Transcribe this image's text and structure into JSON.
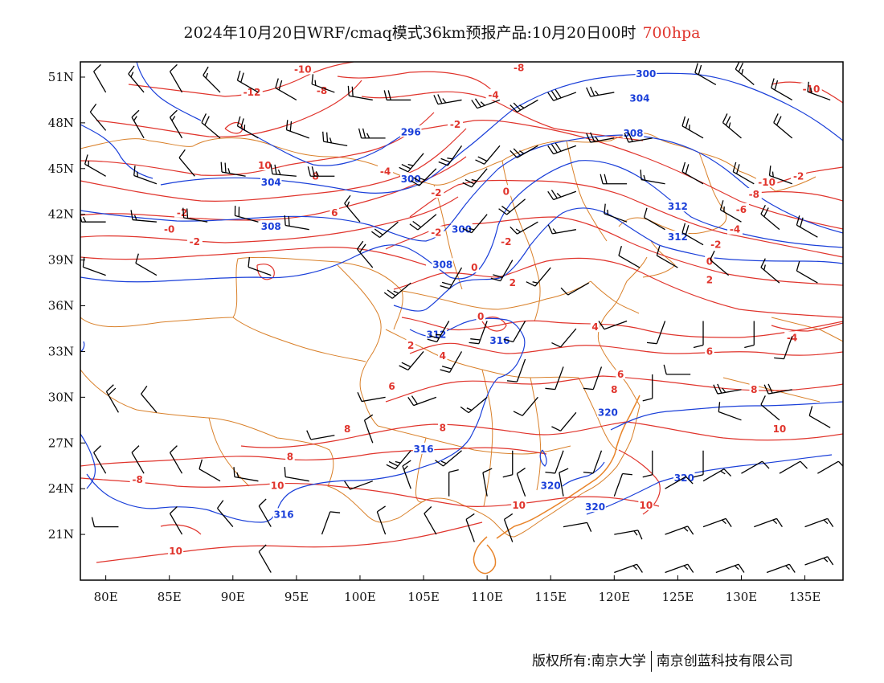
{
  "title": {
    "main": "2024年10月20日WRF/cmaq模式36km预报产品:10月20日00时",
    "level": "700hpa"
  },
  "map": {
    "lon_range": [
      78,
      138
    ],
    "lat_range": [
      18,
      52
    ],
    "x_ticks": [
      "80E",
      "85E",
      "90E",
      "95E",
      "100E",
      "105E",
      "110E",
      "115E",
      "120E",
      "125E",
      "130E",
      "135E"
    ],
    "y_ticks": [
      "51N",
      "48N",
      "45N",
      "42N",
      "39N",
      "36N",
      "33N",
      "30N",
      "27N",
      "24N",
      "21N"
    ],
    "colors": {
      "temperature": "#e0342c",
      "height": "#1a3fd9",
      "border": "#d9802a",
      "wind": "#000000"
    }
  },
  "temperature_labels": [
    {
      "text": "-10",
      "lon": 95.5,
      "lat": 51.5
    },
    {
      "text": "-8",
      "lon": 97,
      "lat": 50.1
    },
    {
      "text": "-12",
      "lon": 91.5,
      "lat": 50.0
    },
    {
      "text": "-8",
      "lon": 112.5,
      "lat": 51.6
    },
    {
      "text": "-4",
      "lon": 110.5,
      "lat": 49.8
    },
    {
      "text": "-2",
      "lon": 107.5,
      "lat": 47.9
    },
    {
      "text": "10",
      "lon": 92.5,
      "lat": 45.2
    },
    {
      "text": "8",
      "lon": 96.5,
      "lat": 44.5
    },
    {
      "text": "-4",
      "lon": 102,
      "lat": 44.8
    },
    {
      "text": "-2",
      "lon": 106,
      "lat": 43.4
    },
    {
      "text": "6",
      "lon": 98,
      "lat": 42.1
    },
    {
      "text": "-2",
      "lon": 86,
      "lat": 42.1
    },
    {
      "text": "-0",
      "lon": 85,
      "lat": 41.0
    },
    {
      "text": "-2",
      "lon": 87,
      "lat": 40.2
    },
    {
      "text": "-2",
      "lon": 106,
      "lat": 40.8
    },
    {
      "text": "-2",
      "lon": 111.5,
      "lat": 40.2
    },
    {
      "text": "0",
      "lon": 111.5,
      "lat": 43.5
    },
    {
      "text": "0",
      "lon": 109,
      "lat": 38.5
    },
    {
      "text": "2",
      "lon": 112,
      "lat": 37.5
    },
    {
      "text": "0",
      "lon": 109.5,
      "lat": 35.3
    },
    {
      "text": "4",
      "lon": 118.5,
      "lat": 34.6
    },
    {
      "text": "2",
      "lon": 104,
      "lat": 33.4
    },
    {
      "text": "4",
      "lon": 106.5,
      "lat": 32.7
    },
    {
      "text": "6",
      "lon": 102.5,
      "lat": 30.7
    },
    {
      "text": "6",
      "lon": 120.5,
      "lat": 31.5
    },
    {
      "text": "8",
      "lon": 120,
      "lat": 30.5
    },
    {
      "text": "6",
      "lon": 127.5,
      "lat": 33.0
    },
    {
      "text": "8",
      "lon": 131,
      "lat": 30.5
    },
    {
      "text": "8",
      "lon": 106.5,
      "lat": 28.0
    },
    {
      "text": "8",
      "lon": 99,
      "lat": 27.9
    },
    {
      "text": "8",
      "lon": 94.5,
      "lat": 26.1
    },
    {
      "text": "-8",
      "lon": 82.5,
      "lat": 24.6
    },
    {
      "text": "10",
      "lon": 93.5,
      "lat": 24.2
    },
    {
      "text": "10",
      "lon": 112.5,
      "lat": 22.9
    },
    {
      "text": "10",
      "lon": 122.5,
      "lat": 22.9
    },
    {
      "text": "10",
      "lon": 133,
      "lat": 27.9
    },
    {
      "text": "10",
      "lon": 85.5,
      "lat": 19.9
    },
    {
      "text": "-10",
      "lon": 132,
      "lat": 44.1
    },
    {
      "text": "-8",
      "lon": 131,
      "lat": 43.3
    },
    {
      "text": "-6",
      "lon": 130,
      "lat": 42.3
    },
    {
      "text": "-4",
      "lon": 129.5,
      "lat": 41.0
    },
    {
      "text": "-2",
      "lon": 128,
      "lat": 40.0
    },
    {
      "text": "0",
      "lon": 127.5,
      "lat": 38.9
    },
    {
      "text": "2",
      "lon": 127.5,
      "lat": 37.7
    },
    {
      "text": "-4",
      "lon": 134,
      "lat": 33.9
    },
    {
      "text": "-2",
      "lon": 134.5,
      "lat": 44.5
    },
    {
      "text": "-10",
      "lon": 135.5,
      "lat": 50.2
    }
  ],
  "height_labels": [
    {
      "text": "300",
      "lon": 122.5,
      "lat": 51.2
    },
    {
      "text": "304",
      "lon": 122,
      "lat": 49.6
    },
    {
      "text": "308",
      "lon": 121.5,
      "lat": 47.3
    },
    {
      "text": "296",
      "lon": 104,
      "lat": 47.4
    },
    {
      "text": "304",
      "lon": 93,
      "lat": 44.1
    },
    {
      "text": "300",
      "lon": 104,
      "lat": 44.3
    },
    {
      "text": "300",
      "lon": 108,
      "lat": 41.0
    },
    {
      "text": "308",
      "lon": 93,
      "lat": 41.2
    },
    {
      "text": "308",
      "lon": 106.5,
      "lat": 38.7
    },
    {
      "text": "312",
      "lon": 125,
      "lat": 42.5
    },
    {
      "text": "312",
      "lon": 125,
      "lat": 40.5
    },
    {
      "text": "312",
      "lon": 106,
      "lat": 34.1
    },
    {
      "text": "316",
      "lon": 111,
      "lat": 33.7
    },
    {
      "text": "320",
      "lon": 119.5,
      "lat": 29.0
    },
    {
      "text": "316",
      "lon": 105,
      "lat": 26.6
    },
    {
      "text": "320",
      "lon": 115,
      "lat": 24.2
    },
    {
      "text": "320",
      "lon": 118.5,
      "lat": 22.8
    },
    {
      "text": "320",
      "lon": 125.5,
      "lat": 24.7
    },
    {
      "text": "316",
      "lon": 94,
      "lat": 22.3
    }
  ],
  "wind_barbs": [
    {
      "lon": 80,
      "lat": 50,
      "dir": 330,
      "speed": 10
    },
    {
      "lon": 83,
      "lat": 50,
      "dir": 320,
      "speed": 15
    },
    {
      "lon": 86,
      "lat": 50,
      "dir": 330,
      "speed": 10
    },
    {
      "lon": 89,
      "lat": 50,
      "dir": 315,
      "speed": 15
    },
    {
      "lon": 92,
      "lat": 50,
      "dir": 300,
      "speed": 20
    },
    {
      "lon": 95,
      "lat": 49.5,
      "dir": 300,
      "speed": 20
    },
    {
      "lon": 98,
      "lat": 50,
      "dir": 290,
      "speed": 15
    },
    {
      "lon": 101,
      "lat": 49.5,
      "dir": 280,
      "speed": 20
    },
    {
      "lon": 104,
      "lat": 49.5,
      "dir": 270,
      "speed": 20
    },
    {
      "lon": 108,
      "lat": 49.5,
      "dir": 260,
      "speed": 25
    },
    {
      "lon": 111,
      "lat": 49.5,
      "dir": 250,
      "speed": 25
    },
    {
      "lon": 114,
      "lat": 49.5,
      "dir": 240,
      "speed": 25
    },
    {
      "lon": 117,
      "lat": 50,
      "dir": 250,
      "speed": 30
    },
    {
      "lon": 120,
      "lat": 50,
      "dir": 260,
      "speed": 25
    },
    {
      "lon": 128,
      "lat": 50.5,
      "dir": 300,
      "speed": 20
    },
    {
      "lon": 131,
      "lat": 50.5,
      "dir": 310,
      "speed": 25
    },
    {
      "lon": 134,
      "lat": 49.5,
      "dir": 300,
      "speed": 20
    },
    {
      "lon": 137,
      "lat": 49.5,
      "dir": 290,
      "speed": 15
    },
    {
      "lon": 80,
      "lat": 47.5,
      "dir": 320,
      "speed": 10
    },
    {
      "lon": 83,
      "lat": 47,
      "dir": 330,
      "speed": 15
    },
    {
      "lon": 86,
      "lat": 47,
      "dir": 330,
      "speed": 15
    },
    {
      "lon": 89,
      "lat": 47,
      "dir": 310,
      "speed": 20
    },
    {
      "lon": 92,
      "lat": 47,
      "dir": 300,
      "speed": 25
    },
    {
      "lon": 96,
      "lat": 47,
      "dir": 290,
      "speed": 20
    },
    {
      "lon": 99,
      "lat": 46.5,
      "dir": 280,
      "speed": 25
    },
    {
      "lon": 102,
      "lat": 47,
      "dir": 270,
      "speed": 25
    },
    {
      "lon": 105,
      "lat": 46,
      "dir": 220,
      "speed": 25
    },
    {
      "lon": 108,
      "lat": 46.5,
      "dir": 215,
      "speed": 25
    },
    {
      "lon": 111,
      "lat": 46.5,
      "dir": 220,
      "speed": 20
    },
    {
      "lon": 114,
      "lat": 46.5,
      "dir": 240,
      "speed": 25
    },
    {
      "lon": 117,
      "lat": 46.5,
      "dir": 250,
      "speed": 30
    },
    {
      "lon": 120,
      "lat": 47,
      "dir": 260,
      "speed": 25
    },
    {
      "lon": 123,
      "lat": 47,
      "dir": 260,
      "speed": 20
    },
    {
      "lon": 127,
      "lat": 47,
      "dir": 300,
      "speed": 25
    },
    {
      "lon": 130,
      "lat": 47,
      "dir": 310,
      "speed": 25
    },
    {
      "lon": 134,
      "lat": 47,
      "dir": 310,
      "speed": 20
    },
    {
      "lon": 80,
      "lat": 44.5,
      "dir": 300,
      "speed": 15
    },
    {
      "lon": 84,
      "lat": 44,
      "dir": 290,
      "speed": 15
    },
    {
      "lon": 87,
      "lat": 44.5,
      "dir": 320,
      "speed": 10
    },
    {
      "lon": 91,
      "lat": 44.5,
      "dir": 280,
      "speed": 25
    },
    {
      "lon": 95,
      "lat": 44.5,
      "dir": 275,
      "speed": 25
    },
    {
      "lon": 98,
      "lat": 44.5,
      "dir": 270,
      "speed": 25
    },
    {
      "lon": 106,
      "lat": 45,
      "dir": 225,
      "speed": 25
    },
    {
      "lon": 110,
      "lat": 45,
      "dir": 220,
      "speed": 25
    },
    {
      "lon": 113,
      "lat": 43,
      "dir": 230,
      "speed": 20
    },
    {
      "lon": 117,
      "lat": 43.5,
      "dir": 250,
      "speed": 25
    },
    {
      "lon": 121,
      "lat": 44,
      "dir": 270,
      "speed": 20
    },
    {
      "lon": 124,
      "lat": 44,
      "dir": 280,
      "speed": 15
    },
    {
      "lon": 127,
      "lat": 44,
      "dir": 300,
      "speed": 20
    },
    {
      "lon": 131,
      "lat": 44,
      "dir": 300,
      "speed": 20
    },
    {
      "lon": 134,
      "lat": 44,
      "dir": 290,
      "speed": 15
    },
    {
      "lon": 80,
      "lat": 41.5,
      "dir": 270,
      "speed": 15
    },
    {
      "lon": 84,
      "lat": 41.5,
      "dir": 275,
      "speed": 15
    },
    {
      "lon": 88,
      "lat": 41.5,
      "dir": 280,
      "speed": 20
    },
    {
      "lon": 92,
      "lat": 41.5,
      "dir": 285,
      "speed": 20
    },
    {
      "lon": 96,
      "lat": 41,
      "dir": 280,
      "speed": 20
    },
    {
      "lon": 100,
      "lat": 41.5,
      "dir": 320,
      "speed": 15
    },
    {
      "lon": 103,
      "lat": 41.5,
      "dir": 230,
      "speed": 20
    },
    {
      "lon": 106,
      "lat": 42,
      "dir": 230,
      "speed": 20
    },
    {
      "lon": 110,
      "lat": 42,
      "dir": 220,
      "speed": 15
    },
    {
      "lon": 114,
      "lat": 41.5,
      "dir": 240,
      "speed": 15
    },
    {
      "lon": 117,
      "lat": 41,
      "dir": 260,
      "speed": 15
    },
    {
      "lon": 121,
      "lat": 41.5,
      "dir": 290,
      "speed": 15
    },
    {
      "lon": 124,
      "lat": 41,
      "dir": 300,
      "speed": 10
    },
    {
      "lon": 127,
      "lat": 40,
      "dir": 300,
      "speed": 20
    },
    {
      "lon": 130,
      "lat": 41.5,
      "dir": 300,
      "speed": 15
    },
    {
      "lon": 133,
      "lat": 41,
      "dir": 310,
      "speed": 20
    },
    {
      "lon": 136,
      "lat": 40.5,
      "dir": 300,
      "speed": 20
    },
    {
      "lon": 80,
      "lat": 38,
      "dir": 290,
      "speed": 10
    },
    {
      "lon": 84,
      "lat": 38,
      "dir": 300,
      "speed": 10
    },
    {
      "lon": 93,
      "lat": 38,
      "dir": 290,
      "speed": 10
    },
    {
      "lon": 101,
      "lat": 38.5,
      "dir": 320,
      "speed": 20
    },
    {
      "lon": 104,
      "lat": 37.5,
      "dir": 230,
      "speed": 25
    },
    {
      "lon": 108,
      "lat": 38.5,
      "dir": 210,
      "speed": 20
    },
    {
      "lon": 112,
      "lat": 39,
      "dir": 210,
      "speed": 20
    },
    {
      "lon": 115,
      "lat": 38.5,
      "dir": 220,
      "speed": 15
    },
    {
      "lon": 118,
      "lat": 37.5,
      "dir": 240,
      "speed": 10
    },
    {
      "lon": 122,
      "lat": 38.5,
      "dir": 300,
      "speed": 10
    },
    {
      "lon": 125,
      "lat": 38.5,
      "dir": 300,
      "speed": 10
    },
    {
      "lon": 129,
      "lat": 38,
      "dir": 310,
      "speed": 10
    },
    {
      "lon": 133,
      "lat": 37.5,
      "dir": 310,
      "speed": 15
    },
    {
      "lon": 136,
      "lat": 37.5,
      "dir": 300,
      "speed": 10
    },
    {
      "lon": 107,
      "lat": 35,
      "dir": 210,
      "speed": 25
    },
    {
      "lon": 110,
      "lat": 35,
      "dir": 200,
      "speed": 20
    },
    {
      "lon": 113,
      "lat": 35,
      "dir": 210,
      "speed": 10
    },
    {
      "lon": 117,
      "lat": 34.5,
      "dir": 220,
      "speed": 10
    },
    {
      "lon": 121,
      "lat": 35,
      "dir": 250,
      "speed": 10
    },
    {
      "lon": 124,
      "lat": 35,
      "dir": 200,
      "speed": 10
    },
    {
      "lon": 127,
      "lat": 35,
      "dir": 180,
      "speed": 10
    },
    {
      "lon": 131,
      "lat": 35,
      "dir": 180,
      "speed": 10
    },
    {
      "lon": 134,
      "lat": 34,
      "dir": 200,
      "speed": 10
    },
    {
      "lon": 105,
      "lat": 33,
      "dir": 220,
      "speed": 20
    },
    {
      "lon": 108,
      "lat": 33,
      "dir": 210,
      "speed": 20
    },
    {
      "lon": 113,
      "lat": 32.5,
      "dir": 200,
      "speed": 10
    },
    {
      "lon": 116,
      "lat": 32,
      "dir": 200,
      "speed": 10
    },
    {
      "lon": 119,
      "lat": 32,
      "dir": 200,
      "speed": 10
    },
    {
      "lon": 123,
      "lat": 31.5,
      "dir": 180,
      "speed": 10
    },
    {
      "lon": 126,
      "lat": 31.5,
      "dir": 270,
      "speed": 10
    },
    {
      "lon": 130,
      "lat": 30.5,
      "dir": 260,
      "speed": 25
    },
    {
      "lon": 134,
      "lat": 30.5,
      "dir": 260,
      "speed": 20
    },
    {
      "lon": 81,
      "lat": 29,
      "dir": 330,
      "speed": 20
    },
    {
      "lon": 84,
      "lat": 29,
      "dir": 320,
      "speed": 10
    },
    {
      "lon": 102,
      "lat": 30,
      "dir": 260,
      "speed": 10
    },
    {
      "lon": 106,
      "lat": 30,
      "dir": 250,
      "speed": 20
    },
    {
      "lon": 110,
      "lat": 30,
      "dir": 230,
      "speed": 15
    },
    {
      "lon": 114,
      "lat": 30,
      "dir": 220,
      "speed": 10
    },
    {
      "lon": 117,
      "lat": 29,
      "dir": 220,
      "speed": 10
    },
    {
      "lon": 130,
      "lat": 28.5,
      "dir": 290,
      "speed": 10
    },
    {
      "lon": 133,
      "lat": 28.5,
      "dir": 310,
      "speed": 10
    },
    {
      "lon": 137,
      "lat": 28,
      "dir": 300,
      "speed": 10
    },
    {
      "lon": 98,
      "lat": 27.5,
      "dir": 260,
      "speed": 10
    },
    {
      "lon": 101,
      "lat": 27,
      "dir": 340,
      "speed": 10
    },
    {
      "lon": 104,
      "lat": 26.5,
      "dir": 220,
      "speed": 25
    },
    {
      "lon": 108,
      "lat": 26.5,
      "dir": 230,
      "speed": 15
    },
    {
      "lon": 112,
      "lat": 26.5,
      "dir": 180,
      "speed": 10
    },
    {
      "lon": 116,
      "lat": 26.5,
      "dir": 200,
      "speed": 10
    },
    {
      "lon": 119,
      "lat": 26.5,
      "dir": 200,
      "speed": 10
    },
    {
      "lon": 123,
      "lat": 26.5,
      "dir": 180,
      "speed": 10
    },
    {
      "lon": 127,
      "lat": 26.5,
      "dir": 180,
      "speed": 10
    },
    {
      "lon": 80,
      "lat": 25,
      "dir": 330,
      "speed": 10
    },
    {
      "lon": 83,
      "lat": 25,
      "dir": 330,
      "speed": 10
    },
    {
      "lon": 86,
      "lat": 25,
      "dir": 330,
      "speed": 10
    },
    {
      "lon": 89,
      "lat": 24.5,
      "dir": 300,
      "speed": 10
    },
    {
      "lon": 92,
      "lat": 24.5,
      "dir": 280,
      "speed": 15
    },
    {
      "lon": 96,
      "lat": 24.5,
      "dir": 280,
      "speed": 10
    },
    {
      "lon": 101,
      "lat": 24.5,
      "dir": 250,
      "speed": 10
    },
    {
      "lon": 104,
      "lat": 24,
      "dir": 340,
      "speed": 15
    },
    {
      "lon": 107,
      "lat": 23.5,
      "dir": 0,
      "speed": 10
    },
    {
      "lon": 110,
      "lat": 23.5,
      "dir": 350,
      "speed": 10
    },
    {
      "lon": 113,
      "lat": 23.5,
      "dir": 340,
      "speed": 10
    },
    {
      "lon": 116,
      "lat": 23.5,
      "dir": 350,
      "speed": 10
    },
    {
      "lon": 120,
      "lat": 23.5,
      "dir": 20,
      "speed": 10
    },
    {
      "lon": 124,
      "lat": 24,
      "dir": 60,
      "speed": 10
    },
    {
      "lon": 127,
      "lat": 24.5,
      "dir": 60,
      "speed": 15
    },
    {
      "lon": 130,
      "lat": 25,
      "dir": 60,
      "speed": 10
    },
    {
      "lon": 133,
      "lat": 25,
      "dir": 60,
      "speed": 10
    },
    {
      "lon": 136,
      "lat": 25,
      "dir": 60,
      "speed": 10
    },
    {
      "lon": 81,
      "lat": 21.5,
      "dir": 270,
      "speed": 10
    },
    {
      "lon": 86,
      "lat": 21,
      "dir": 330,
      "speed": 10
    },
    {
      "lon": 90,
      "lat": 21.5,
      "dir": 320,
      "speed": 10
    },
    {
      "lon": 93,
      "lat": 21.5,
      "dir": 330,
      "speed": 10
    },
    {
      "lon": 97,
      "lat": 21,
      "dir": 20,
      "speed": 10
    },
    {
      "lon": 102,
      "lat": 21,
      "dir": 340,
      "speed": 10
    },
    {
      "lon": 106,
      "lat": 21,
      "dir": 330,
      "speed": 10
    },
    {
      "lon": 109,
      "lat": 20.5,
      "dir": 340,
      "speed": 10
    },
    {
      "lon": 112,
      "lat": 20.5,
      "dir": 340,
      "speed": 10
    },
    {
      "lon": 116,
      "lat": 21.5,
      "dir": 80,
      "speed": 10
    },
    {
      "lon": 120,
      "lat": 21,
      "dir": 80,
      "speed": 15
    },
    {
      "lon": 124,
      "lat": 21,
      "dir": 70,
      "speed": 15
    },
    {
      "lon": 127,
      "lat": 21.5,
      "dir": 70,
      "speed": 15
    },
    {
      "lon": 131,
      "lat": 21.5,
      "dir": 70,
      "speed": 15
    },
    {
      "lon": 135,
      "lat": 21.5,
      "dir": 70,
      "speed": 15
    },
    {
      "lon": 93,
      "lat": 18.5,
      "dir": 330,
      "speed": 10
    },
    {
      "lon": 120,
      "lat": 18.5,
      "dir": 70,
      "speed": 15
    },
    {
      "lon": 124,
      "lat": 18.5,
      "dir": 70,
      "speed": 15
    },
    {
      "lon": 128,
      "lat": 18.5,
      "dir": 70,
      "speed": 15
    },
    {
      "lon": 132,
      "lat": 18.5,
      "dir": 70,
      "speed": 15
    },
    {
      "lon": 135,
      "lat": 19,
      "dir": 70,
      "speed": 15
    }
  ],
  "footer": {
    "left": "版权所有:南京大学",
    "right": "南京创蓝科技有限公司"
  }
}
